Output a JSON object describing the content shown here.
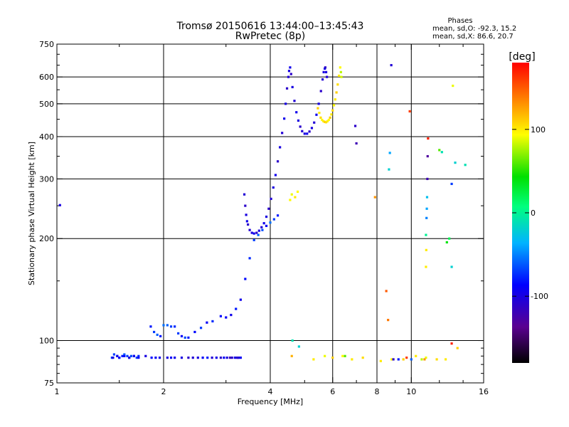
{
  "chart_data": {
    "type": "scatter",
    "title": "Tromsø 20150616 13:44:00–13:45:43",
    "subtitle": "RwPretec (8p)",
    "xlabel": "Frequency [MHz]",
    "ylabel": "Stationary phase Virtual Height [km]",
    "x_scale": "log",
    "y_scale": "log",
    "xlim": [
      1,
      16
    ],
    "ylim": [
      75,
      750
    ],
    "x_ticks": [
      1,
      2,
      4,
      6,
      8,
      10,
      16
    ],
    "y_ticks": [
      75,
      100,
      200,
      300,
      400,
      500,
      600,
      750
    ],
    "x_grid": [
      2,
      4,
      6,
      8,
      10
    ],
    "y_grid": [
      100,
      200,
      300,
      400,
      500,
      600
    ],
    "grid": true,
    "phases": {
      "title": "Phases",
      "line1": "mean, sd,O: -92.3, 15.2",
      "line2": "mean, sd,X:  86.6, 20.7"
    },
    "colorbar": {
      "label": "[deg]",
      "range": [
        -180,
        180
      ],
      "ticks": [
        100,
        0,
        -100
      ],
      "tick_labels": [
        "100",
        "0",
        "-100"
      ]
    },
    "series": [
      {
        "x": [
          1.02,
          1.43,
          1.45,
          1.48,
          1.5,
          1.53,
          1.55,
          1.58,
          1.6,
          1.62,
          1.65,
          1.68,
          1.7,
          1.84,
          1.88,
          1.92,
          1.96,
          2.0,
          2.05,
          2.1,
          2.15,
          2.2,
          2.25,
          2.3,
          2.35,
          2.45,
          2.55,
          2.65,
          2.75,
          2.9,
          3.0,
          3.1,
          3.2,
          3.3,
          3.4,
          3.5,
          3.6,
          3.7,
          3.8,
          3.9,
          4.0,
          4.1,
          4.2,
          1.44,
          1.48,
          1.5,
          1.55,
          1.6,
          1.65,
          1.7,
          1.78,
          1.85,
          1.9,
          1.95,
          2.05,
          2.1,
          2.15,
          2.25,
          2.35,
          2.42,
          2.5,
          2.58,
          2.66,
          2.74,
          2.82,
          2.9,
          2.96,
          3.02,
          3.08,
          3.12,
          3.18,
          3.24,
          3.3,
          3.26,
          3.22
        ],
        "y": [
          251,
          89,
          91,
          90,
          89,
          90,
          91,
          90,
          89,
          90,
          90,
          89,
          90,
          110,
          106,
          104,
          103,
          111,
          111,
          110,
          110,
          105,
          103,
          102,
          102,
          106,
          109,
          113,
          114,
          118,
          117,
          119,
          124,
          132,
          152,
          175,
          198,
          205,
          212,
          218,
          223,
          228,
          234,
          89,
          90,
          89,
          90,
          89,
          90,
          89,
          90,
          89,
          89,
          89,
          89,
          89,
          89,
          89,
          89,
          89,
          89,
          89,
          89,
          89,
          89,
          89,
          89,
          89,
          89,
          89,
          89,
          89,
          89,
          89,
          89
        ],
        "phase": [
          -100,
          -70,
          -70,
          -75,
          -60,
          -80,
          -60,
          -70,
          -75,
          -65,
          -80,
          -70,
          -75,
          -80,
          -70,
          -60,
          -80,
          -55,
          -60,
          -70,
          -75,
          -70,
          -90,
          -65,
          -80,
          -85,
          -70,
          -90,
          -75,
          -85,
          -90,
          -95,
          -80,
          -95,
          -85,
          -75,
          -70,
          -60,
          -65,
          -90,
          -55,
          -70,
          -80,
          -100,
          -95,
          -90,
          -85,
          -100,
          -95,
          -90,
          -100,
          -85,
          -90,
          -95,
          -100,
          -90,
          -95,
          -100,
          -110,
          -105,
          -100,
          -90,
          -80,
          -105,
          -95,
          -110,
          -90,
          -100,
          -120,
          -110,
          -95,
          -105,
          -90,
          -100,
          -110
        ]
      },
      {
        "x": [
          3.38,
          3.4,
          3.42,
          3.44,
          3.46,
          3.5,
          3.55,
          3.6,
          3.66,
          3.72,
          3.78,
          3.84,
          3.9,
          3.96,
          4.02,
          4.08,
          4.14,
          4.2,
          4.26,
          4.32,
          4.38,
          4.42,
          4.46,
          4.5,
          4.52,
          4.55,
          4.58,
          4.62,
          4.68,
          4.74,
          4.8,
          4.86,
          4.92,
          5.0,
          5.08,
          5.16,
          5.24,
          5.32,
          5.4,
          5.48,
          5.56,
          5.62,
          5.66,
          5.7,
          5.72,
          5.75,
          5.78
        ],
        "y": [
          270,
          250,
          235,
          225,
          220,
          212,
          208,
          207,
          208,
          211,
          216,
          222,
          232,
          245,
          262,
          283,
          308,
          338,
          372,
          410,
          452,
          500,
          555,
          600,
          625,
          640,
          612,
          560,
          510,
          472,
          446,
          428,
          415,
          408,
          408,
          414,
          424,
          440,
          464,
          500,
          545,
          590,
          620,
          635,
          640,
          620,
          600
        ],
        "phase": [
          -105,
          -110,
          -100,
          -95,
          -110,
          -105,
          -100,
          -95,
          -110,
          -100,
          -105,
          -95,
          -100,
          -110,
          -105,
          -100,
          -95,
          -110,
          -100,
          -105,
          -95,
          -100,
          -110,
          -105,
          -100,
          -95,
          -110,
          -100,
          -105,
          -95,
          -100,
          -110,
          -105,
          -100,
          -95,
          -110,
          -100,
          -105,
          -95,
          -100,
          -110,
          -105,
          -100,
          -95,
          -110,
          -100,
          -105
        ]
      },
      {
        "x": [
          4.55,
          4.6,
          5.45,
          5.5,
          5.55,
          5.6,
          5.65,
          5.7,
          5.75,
          5.8,
          5.85,
          5.9,
          5.95,
          6.0,
          6.05,
          6.1,
          6.15,
          6.2,
          6.25,
          6.3,
          6.33,
          6.35,
          4.7,
          4.78,
          4.82,
          4.6,
          5.3,
          5.7,
          6.0,
          6.4,
          6.8,
          7.3,
          8.2,
          8.8,
          9.5,
          10.3,
          11.0,
          11.8,
          12.5
        ],
        "y": [
          260,
          270,
          485,
          470,
          455,
          448,
          444,
          442,
          441,
          444,
          448,
          455,
          465,
          478,
          495,
          515,
          540,
          570,
          605,
          640,
          620,
          600,
          265,
          275,
          96,
          90,
          88,
          90,
          89,
          90,
          88,
          89,
          87,
          88,
          88,
          90,
          89,
          88,
          88
        ],
        "phase": [
          95,
          90,
          110,
          100,
          105,
          95,
          100,
          110,
          105,
          100,
          95,
          110,
          100,
          105,
          95,
          100,
          110,
          105,
          100,
          95,
          80,
          85,
          100,
          95,
          -20,
          120,
          100,
          90,
          110,
          95,
          100,
          105,
          100,
          95,
          110,
          100,
          90,
          105,
          100
        ]
      },
      {
        "x": [
          6.5,
          6.95,
          7.0,
          7.9,
          8.5,
          8.6,
          8.65,
          8.7,
          8.78,
          8.9,
          9.2,
          9.7,
          10.0,
          10.9,
          11.0,
          11.0,
          11.02,
          11.04,
          11.06,
          11.08,
          11.1,
          11.12,
          11.15,
          12.0,
          12.2,
          12.6,
          12.8,
          13.0,
          13.0,
          13.0,
          13.1,
          13.3,
          13.5,
          14.2,
          10.7,
          4.62,
          9.9
        ],
        "y": [
          90,
          430,
          382,
          265,
          140,
          115,
          320,
          358,
          650,
          88,
          88,
          89,
          88,
          88,
          205,
          165,
          185,
          230,
          245,
          265,
          300,
          350,
          395,
          365,
          360,
          195,
          200,
          165,
          290,
          98,
          565,
          335,
          95,
          330,
          88,
          100,
          475
        ],
        "phase": [
          60,
          -110,
          -120,
          130,
          150,
          140,
          -20,
          -40,
          -105,
          -110,
          -80,
          160,
          -60,
          130,
          0,
          100,
          100,
          -50,
          -40,
          -30,
          -120,
          -130,
          170,
          60,
          -10,
          40,
          20,
          -20,
          -70,
          170,
          90,
          -20,
          110,
          -10,
          80,
          -10,
          160
        ]
      }
    ]
  }
}
